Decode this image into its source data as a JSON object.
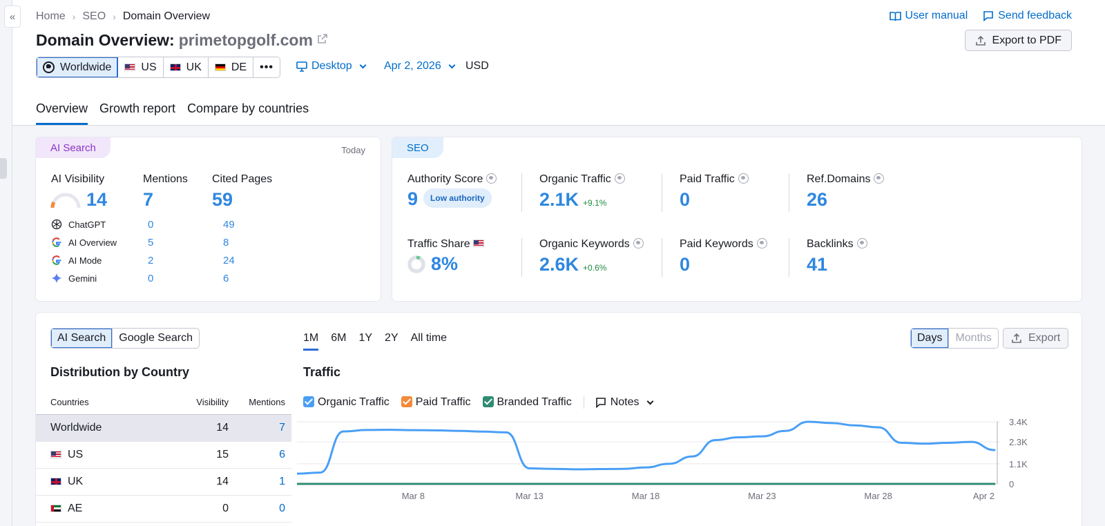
{
  "breadcrumb": {
    "items": [
      "Home",
      "SEO",
      "Domain Overview"
    ]
  },
  "header": {
    "title_prefix": "Domain Overview:",
    "domain": "primetopgolf.com",
    "user_manual": "User manual",
    "send_feedback": "Send feedback",
    "export_pdf": "Export to PDF"
  },
  "databases": [
    {
      "label": "Worldwide",
      "flag": "globe",
      "selected": true
    },
    {
      "label": "US",
      "flag": "us"
    },
    {
      "label": "UK",
      "flag": "uk"
    },
    {
      "label": "DE",
      "flag": "de"
    }
  ],
  "device": {
    "label": "Desktop"
  },
  "date": {
    "label": "Apr 2, 2026"
  },
  "currency": "USD",
  "tabs": [
    "Overview",
    "Growth report",
    "Compare by countries"
  ],
  "ai_card": {
    "pill": "AI Search",
    "today": "Today",
    "headers": {
      "visibility": "AI Visibility",
      "mentions": "Mentions",
      "cited": "Cited Pages"
    },
    "totals": {
      "visibility": "14",
      "mentions": "7",
      "cited": "59"
    },
    "visibility_gauge": 0.14,
    "sources": [
      {
        "name": "ChatGPT",
        "icon": "chatgpt-icon",
        "mentions": "0",
        "cited": "49"
      },
      {
        "name": "AI Overview",
        "icon": "google-icon",
        "mentions": "5",
        "cited": "8"
      },
      {
        "name": "AI Mode",
        "icon": "google-icon",
        "mentions": "2",
        "cited": "24"
      },
      {
        "name": "Gemini",
        "icon": "gemini-icon",
        "mentions": "0",
        "cited": "6"
      }
    ]
  },
  "seo_card": {
    "pill": "SEO",
    "authority": {
      "label": "Authority Score",
      "value": "9",
      "chip": "Low authority"
    },
    "organic_traffic": {
      "label": "Organic Traffic",
      "value": "2.1K",
      "delta": "+9.1%"
    },
    "paid_traffic": {
      "label": "Paid Traffic",
      "value": "0"
    },
    "ref_domains": {
      "label": "Ref.Domains",
      "value": "26"
    },
    "traffic_share": {
      "label": "Traffic Share",
      "value": "8%",
      "fraction": 0.08
    },
    "organic_keywords": {
      "label": "Organic Keywords",
      "value": "2.6K",
      "delta": "+0.6%"
    },
    "paid_keywords": {
      "label": "Paid Keywords",
      "value": "0"
    },
    "backlinks": {
      "label": "Backlinks",
      "value": "41"
    }
  },
  "bottom": {
    "toggle": [
      "AI Search",
      "Google Search"
    ],
    "periods": [
      "1M",
      "6M",
      "1Y",
      "2Y",
      "All time"
    ],
    "granularity": [
      "Days",
      "Months"
    ],
    "export": "Export",
    "dist_title": "Distribution by Country",
    "traffic_title": "Traffic",
    "table": {
      "headers": [
        "Countries",
        "Visibility",
        "Mentions"
      ],
      "rows": [
        {
          "country": "Worldwide",
          "flag": "",
          "visibility": "14",
          "mentions": "7"
        },
        {
          "country": "US",
          "flag": "us",
          "visibility": "15",
          "mentions": "6"
        },
        {
          "country": "UK",
          "flag": "uk",
          "visibility": "14",
          "mentions": "1"
        },
        {
          "country": "AE",
          "flag": "ae",
          "visibility": "0",
          "mentions": "0"
        }
      ]
    },
    "legend": [
      {
        "label": "Organic Traffic",
        "color": "#4a9ff5"
      },
      {
        "label": "Paid Traffic",
        "color": "#f48a3a"
      },
      {
        "label": "Branded Traffic",
        "color": "#2f8b72"
      }
    ],
    "notes": "Notes"
  },
  "chart_data": {
    "type": "line",
    "x": [
      "Mar 3",
      "Mar 4",
      "Mar 5",
      "Mar 6",
      "Mar 7",
      "Mar 8",
      "Mar 9",
      "Mar 10",
      "Mar 11",
      "Mar 12",
      "Mar 13",
      "Mar 14",
      "Mar 15",
      "Mar 16",
      "Mar 17",
      "Mar 18",
      "Mar 19",
      "Mar 20",
      "Mar 21",
      "Mar 22",
      "Mar 23",
      "Mar 24",
      "Mar 25",
      "Mar 26",
      "Mar 27",
      "Mar 28",
      "Mar 29",
      "Mar 30",
      "Mar 31",
      "Apr 1",
      "Apr 2"
    ],
    "x_ticks": [
      "Mar 8",
      "Mar 13",
      "Mar 18",
      "Mar 23",
      "Mar 28",
      "Apr 2"
    ],
    "y_ticks": [
      "3.4K",
      "2.3K",
      "1.1K",
      "0"
    ],
    "ylim": [
      0,
      3400
    ],
    "series": [
      {
        "name": "Organic Traffic",
        "color": "#4a9ff5",
        "values": [
          560,
          620,
          2870,
          2950,
          2960,
          2940,
          2930,
          2900,
          2860,
          2820,
          850,
          820,
          800,
          810,
          820,
          900,
          1100,
          1500,
          2400,
          2550,
          2600,
          2900,
          3400,
          3330,
          3200,
          3100,
          2250,
          2200,
          2250,
          2300,
          1850
        ]
      },
      {
        "name": "Branded Traffic",
        "color": "#2f8b72",
        "values": [
          0,
          0,
          0,
          0,
          0,
          0,
          0,
          0,
          0,
          0,
          0,
          0,
          0,
          0,
          0,
          0,
          0,
          0,
          0,
          0,
          0,
          0,
          0,
          0,
          0,
          0,
          0,
          0,
          0,
          0,
          0
        ]
      }
    ]
  }
}
